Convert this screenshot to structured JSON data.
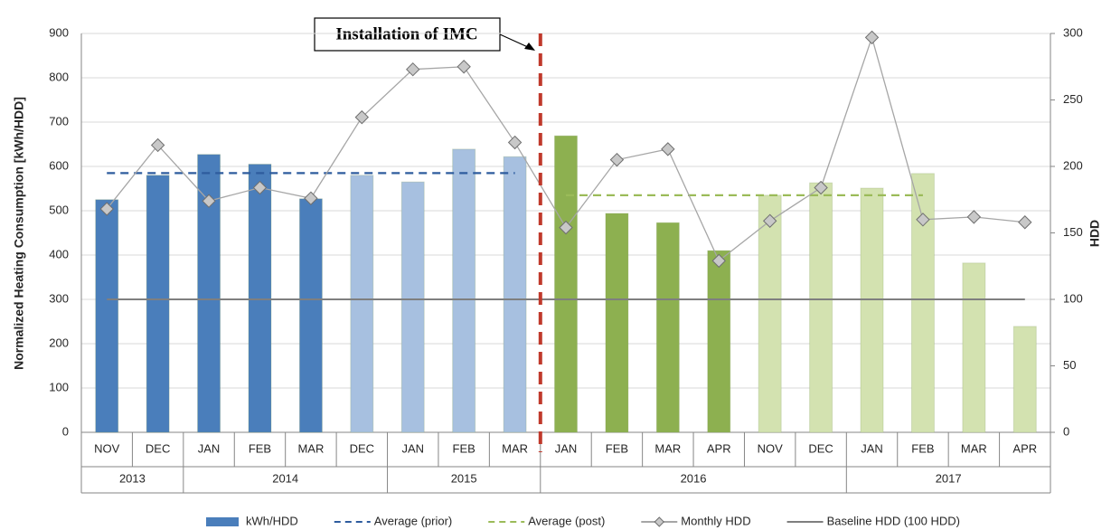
{
  "chart_data": {
    "type": "bar",
    "annotation": "Installation of IMC",
    "y_label": "Normalized Heating Consumption [kWh/HDD]",
    "y2_label": "HDD",
    "categories": [
      "NOV",
      "DEC",
      "JAN",
      "FEB",
      "MAR",
      "DEC",
      "JAN",
      "FEB",
      "MAR",
      "JAN",
      "FEB",
      "MAR",
      "APR",
      "NOV",
      "DEC",
      "JAN",
      "FEB",
      "MAR",
      "APR"
    ],
    "groups": [
      {
        "label": "2013",
        "span": 2
      },
      {
        "label": "2014",
        "span": 4
      },
      {
        "label": "2015",
        "span": 3
      },
      {
        "label": "2016",
        "span": 6
      },
      {
        "label": "2017",
        "span": 4
      }
    ],
    "ylim": [
      0,
      900
    ],
    "yticks": [
      0,
      100,
      200,
      300,
      400,
      500,
      600,
      700,
      800,
      900
    ],
    "y2lim": [
      0,
      300
    ],
    "y2ticks": [
      0,
      50,
      100,
      150,
      200,
      250,
      300
    ],
    "grid": true,
    "legend": "bottom",
    "series": [
      {
        "name": "kWh/HDD",
        "type": "bar",
        "colors": [
          "#4a7ebb",
          "#4a7ebb",
          "#4a7ebb",
          "#4a7ebb",
          "#4a7ebb",
          "#a7c0e0",
          "#a7c0e0",
          "#a7c0e0",
          "#a7c0e0",
          "#8db050",
          "#8db050",
          "#8db050",
          "#8db050",
          "#d3e2b0",
          "#d3e2b0",
          "#d3e2b0",
          "#d3e2b0",
          "#d3e2b0",
          "#d3e2b0"
        ],
        "color": "#4a7ebb",
        "values": [
          525,
          580,
          627,
          605,
          527,
          580,
          565,
          639,
          622,
          669,
          494,
          473,
          410,
          535,
          563,
          551,
          584,
          382,
          239
        ]
      },
      {
        "name": "Average (prior)",
        "type": "line",
        "dash": true,
        "color": "#2e5c9e",
        "values": [
          585,
          585,
          585,
          585,
          585,
          585,
          585,
          585,
          585,
          null,
          null,
          null,
          null,
          null,
          null,
          null,
          null,
          null,
          null
        ]
      },
      {
        "name": "Average (post)",
        "type": "line",
        "dash": true,
        "color": "#9bbb59",
        "values": [
          null,
          null,
          null,
          null,
          null,
          null,
          null,
          null,
          null,
          535,
          535,
          535,
          535,
          535,
          535,
          535,
          535,
          null,
          null
        ]
      },
      {
        "name": "Monthly HDD",
        "type": "line",
        "marker": "diamond",
        "axis": "y2",
        "color": "#a6a6a6",
        "values": [
          168,
          216,
          174,
          184,
          176,
          237,
          273,
          275,
          218,
          154,
          205,
          213,
          129,
          159,
          184,
          297,
          160,
          162,
          158
        ]
      },
      {
        "name": "Baseline HDD (100 HDD)",
        "type": "line",
        "axis": "y2",
        "color": "#7f7f7f",
        "values": [
          100,
          100,
          100,
          100,
          100,
          100,
          100,
          100,
          100,
          100,
          100,
          100,
          100,
          100,
          100,
          100,
          100,
          100,
          100
        ]
      }
    ]
  }
}
